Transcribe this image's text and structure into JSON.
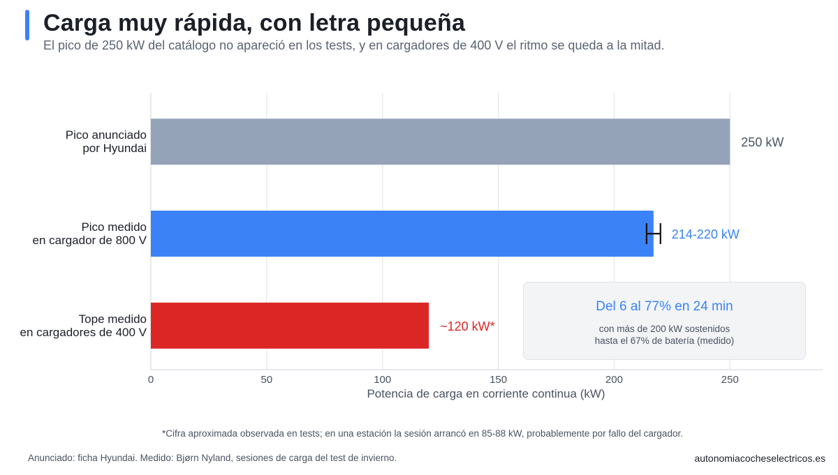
{
  "header": {
    "title": "Carga muy rápida, con letra pequeña",
    "subtitle": "El pico de 250 kW del catálogo no apareció en los tests, y en cargadores de 400 V el ritmo se queda a la mitad.",
    "accent_color": "#3b82f6"
  },
  "chart_data": {
    "type": "bar",
    "orientation": "horizontal",
    "xlabel": "Potencia de carga en corriente continua (kW)",
    "xlim": [
      0,
      290
    ],
    "xticks": [
      0,
      50,
      100,
      150,
      200,
      250
    ],
    "grid": true,
    "categories": [
      [
        "Pico anunciado",
        "por Hyundai"
      ],
      [
        "Pico medido",
        "en cargador de 800 V"
      ],
      [
        "Tope medido",
        "en cargadores de 400 V"
      ]
    ],
    "values": [
      250,
      217,
      120
    ],
    "ranges": [
      null,
      [
        214,
        220
      ],
      null
    ],
    "data_labels": [
      "250 kW",
      "214-220 kW",
      "~120 kW*"
    ],
    "colors": [
      "#94a3b8",
      "#3b82f6",
      "#dc2626"
    ],
    "label_colors": [
      "#4a5262",
      "#3b82f6",
      "#dc2626"
    ]
  },
  "callout": {
    "headline": "Del 6 al 77% en 24 min",
    "line1": "con más de 200 kW sostenidos",
    "line2": "hasta el 67% de batería (medido)",
    "headline_color": "#3b82f6"
  },
  "footnote": "*Cifra aproximada observada en tests; en una estación la sesión arrancó en 85-88 kW, probablemente por fallo del cargador.",
  "source": "Anunciado: ficha Hyundai. Medido: Bjørn Nyland, sesiones de carga del test de invierno.",
  "brand": "autonomiacocheselectricos.es"
}
